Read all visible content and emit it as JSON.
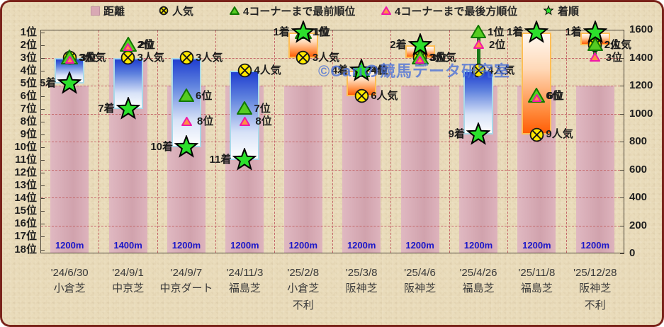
{
  "watermark": "©Cariの競馬データ研究室",
  "legend": {
    "items": [
      {
        "icon": "distance-square",
        "label": "距離"
      },
      {
        "icon": "popularity-circle",
        "label": "人気"
      },
      {
        "icon": "front-triangle",
        "label": "4コーナーまで最前順位"
      },
      {
        "icon": "rear-triangle",
        "label": "4コーナーまで最後方順位"
      },
      {
        "icon": "finish-star",
        "label": "着順"
      }
    ]
  },
  "axes": {
    "left": [
      "1位",
      "2位",
      "3位",
      "4位",
      "5位",
      "6位",
      "7位",
      "8位",
      "9位",
      "10位",
      "11位",
      "12位",
      "13位",
      "14位",
      "15位",
      "16位",
      "17位",
      "18位"
    ],
    "right": [
      "1600",
      "1400",
      "1200",
      "1000",
      "800",
      "600",
      "400",
      "200",
      "0"
    ]
  },
  "colors": {
    "distance_bar": "#d9a9b4",
    "gain_candle_orange": "#ff5d06",
    "loss_candle_blue": "#1f3ed0",
    "finish_star": "#2ce02c",
    "popularity_circle": "#ffe800",
    "front_triangle_green": "#55cc22",
    "rear_triangle_pink": "#ff9044",
    "rear_triangle_border": "#f018a8",
    "whisker_green": "#1b7a1b",
    "watermark_blue": "#486ed8",
    "grid_red": "#c4686a",
    "outer_border": "#7a231b",
    "distance_label_blue": "#1a17c9"
  },
  "races": [
    {
      "date": "'24/6/30",
      "track": "小倉芝",
      "distance": 1200,
      "distance_label": "1200m",
      "popularity": 3,
      "popularity_label": "3人気",
      "front": 3,
      "front_label": "3位",
      "rear": 3,
      "rear_label": "3位",
      "finish": 5,
      "finish_label": "5着",
      "note": ""
    },
    {
      "date": "'24/9/1",
      "track": "中京芝",
      "distance": 1400,
      "distance_label": "1400m",
      "popularity": 3,
      "popularity_label": "3人気",
      "front": 2,
      "front_label": "2位",
      "rear": 2,
      "rear_label": "2位",
      "finish": 7,
      "finish_label": "7着",
      "note": ""
    },
    {
      "date": "'24/9/7",
      "track": "中京ダート",
      "distance": 1200,
      "distance_label": "1200m",
      "popularity": 3,
      "popularity_label": "3人気",
      "front": 6,
      "front_label": "6位",
      "rear": 8,
      "rear_label": "8位",
      "finish": 10,
      "finish_label": "10着",
      "note": ""
    },
    {
      "date": "'24/11/3",
      "track": "福島芝",
      "distance": 1200,
      "distance_label": "1200m",
      "popularity": 4,
      "popularity_label": "4人気",
      "front": 7,
      "front_label": "7位",
      "rear": 8,
      "rear_label": "8位",
      "finish": 11,
      "finish_label": "11着",
      "note": ""
    },
    {
      "date": "'25/2/8",
      "track": "小倉芝",
      "distance": 1200,
      "distance_label": "1200m",
      "popularity": 3,
      "popularity_label": "3人気",
      "front": 1,
      "front_label": "1位",
      "rear": 1,
      "rear_label": "1位",
      "finish": 1,
      "finish_label": "1着",
      "note": "不利"
    },
    {
      "date": "'25/3/8",
      "track": "阪神芝",
      "distance": 1200,
      "distance_label": "1200m",
      "popularity": 6,
      "popularity_label": "6人気",
      "front": 4,
      "front_label": "4位",
      "rear": 4,
      "rear_label": "4位",
      "finish": 4,
      "finish_label": "4着",
      "note": ""
    },
    {
      "date": "'25/4/6",
      "track": "阪神芝",
      "distance": 1200,
      "distance_label": "1200m",
      "popularity": 3,
      "popularity_label": "3人気",
      "front": 3,
      "front_label": "3位",
      "rear": 3,
      "rear_label": "3位",
      "finish": 2,
      "finish_label": "2着",
      "note": ""
    },
    {
      "date": "'25/4/26",
      "track": "福島芝",
      "distance": 1200,
      "distance_label": "1200m",
      "popularity": 4,
      "popularity_label": "4人気",
      "front": 1,
      "front_label": "1位",
      "rear": 2,
      "rear_label": "2位",
      "finish": 9,
      "finish_label": "9着",
      "note": ""
    },
    {
      "date": "'25/11/8",
      "track": "福島芝",
      "distance": 1200,
      "distance_label": "1200m",
      "popularity": 9,
      "popularity_label": "9人気",
      "front": 6,
      "front_label": "6位",
      "rear": 6,
      "rear_label": "6位",
      "finish": 1,
      "finish_label": "1着",
      "note": ""
    },
    {
      "date": "'25/12/28",
      "track": "阪神芝",
      "distance": 1200,
      "distance_label": "1200m",
      "popularity": 2,
      "popularity_label": "2人気",
      "front": 2,
      "front_label": "2位",
      "rear": 3,
      "rear_label": "3位",
      "finish": 1,
      "finish_label": "1着",
      "note": "不利"
    }
  ],
  "chart_data": {
    "type": "candlestick",
    "categories": [
      "'24/6/30 小倉芝",
      "'24/9/1 中京芝",
      "'24/9/7 中京ダート",
      "'24/11/3 福島芝",
      "'25/2/8 小倉芝",
      "'25/3/8 阪神芝",
      "'25/4/6 阪神芝",
      "'25/4/26 福島芝",
      "'25/11/8 福島芝",
      "'25/12/28 阪神芝"
    ],
    "series": [
      {
        "name": "距離",
        "type": "bar",
        "axis": "right",
        "values": [
          1200,
          1400,
          1200,
          1200,
          1200,
          1200,
          1200,
          1200,
          1200,
          1200
        ]
      },
      {
        "name": "人気",
        "type": "marker",
        "axis": "left",
        "values": [
          3,
          3,
          3,
          4,
          3,
          6,
          3,
          4,
          9,
          2
        ]
      },
      {
        "name": "4コーナーまで最前順位",
        "type": "marker",
        "axis": "left",
        "values": [
          3,
          2,
          6,
          7,
          1,
          4,
          3,
          1,
          6,
          2
        ]
      },
      {
        "name": "4コーナーまで最後方順位",
        "type": "marker",
        "axis": "left",
        "values": [
          3,
          2,
          8,
          8,
          1,
          4,
          3,
          2,
          6,
          3
        ]
      },
      {
        "name": "着順",
        "type": "marker",
        "axis": "left",
        "values": [
          5,
          7,
          10,
          11,
          1,
          4,
          2,
          9,
          1,
          1
        ]
      }
    ],
    "notes": [
      {
        "category": "'25/2/8 小倉芝",
        "text": "不利"
      },
      {
        "category": "'25/12/28 阪神芝",
        "text": "不利"
      }
    ],
    "left_axis": {
      "ticks": "1位〜18位",
      "range": [
        1,
        18
      ],
      "inverted": true
    },
    "right_axis": {
      "ticks": "0〜1600",
      "range": [
        0,
        1600
      ]
    },
    "grid": true,
    "legend_position": "top"
  }
}
